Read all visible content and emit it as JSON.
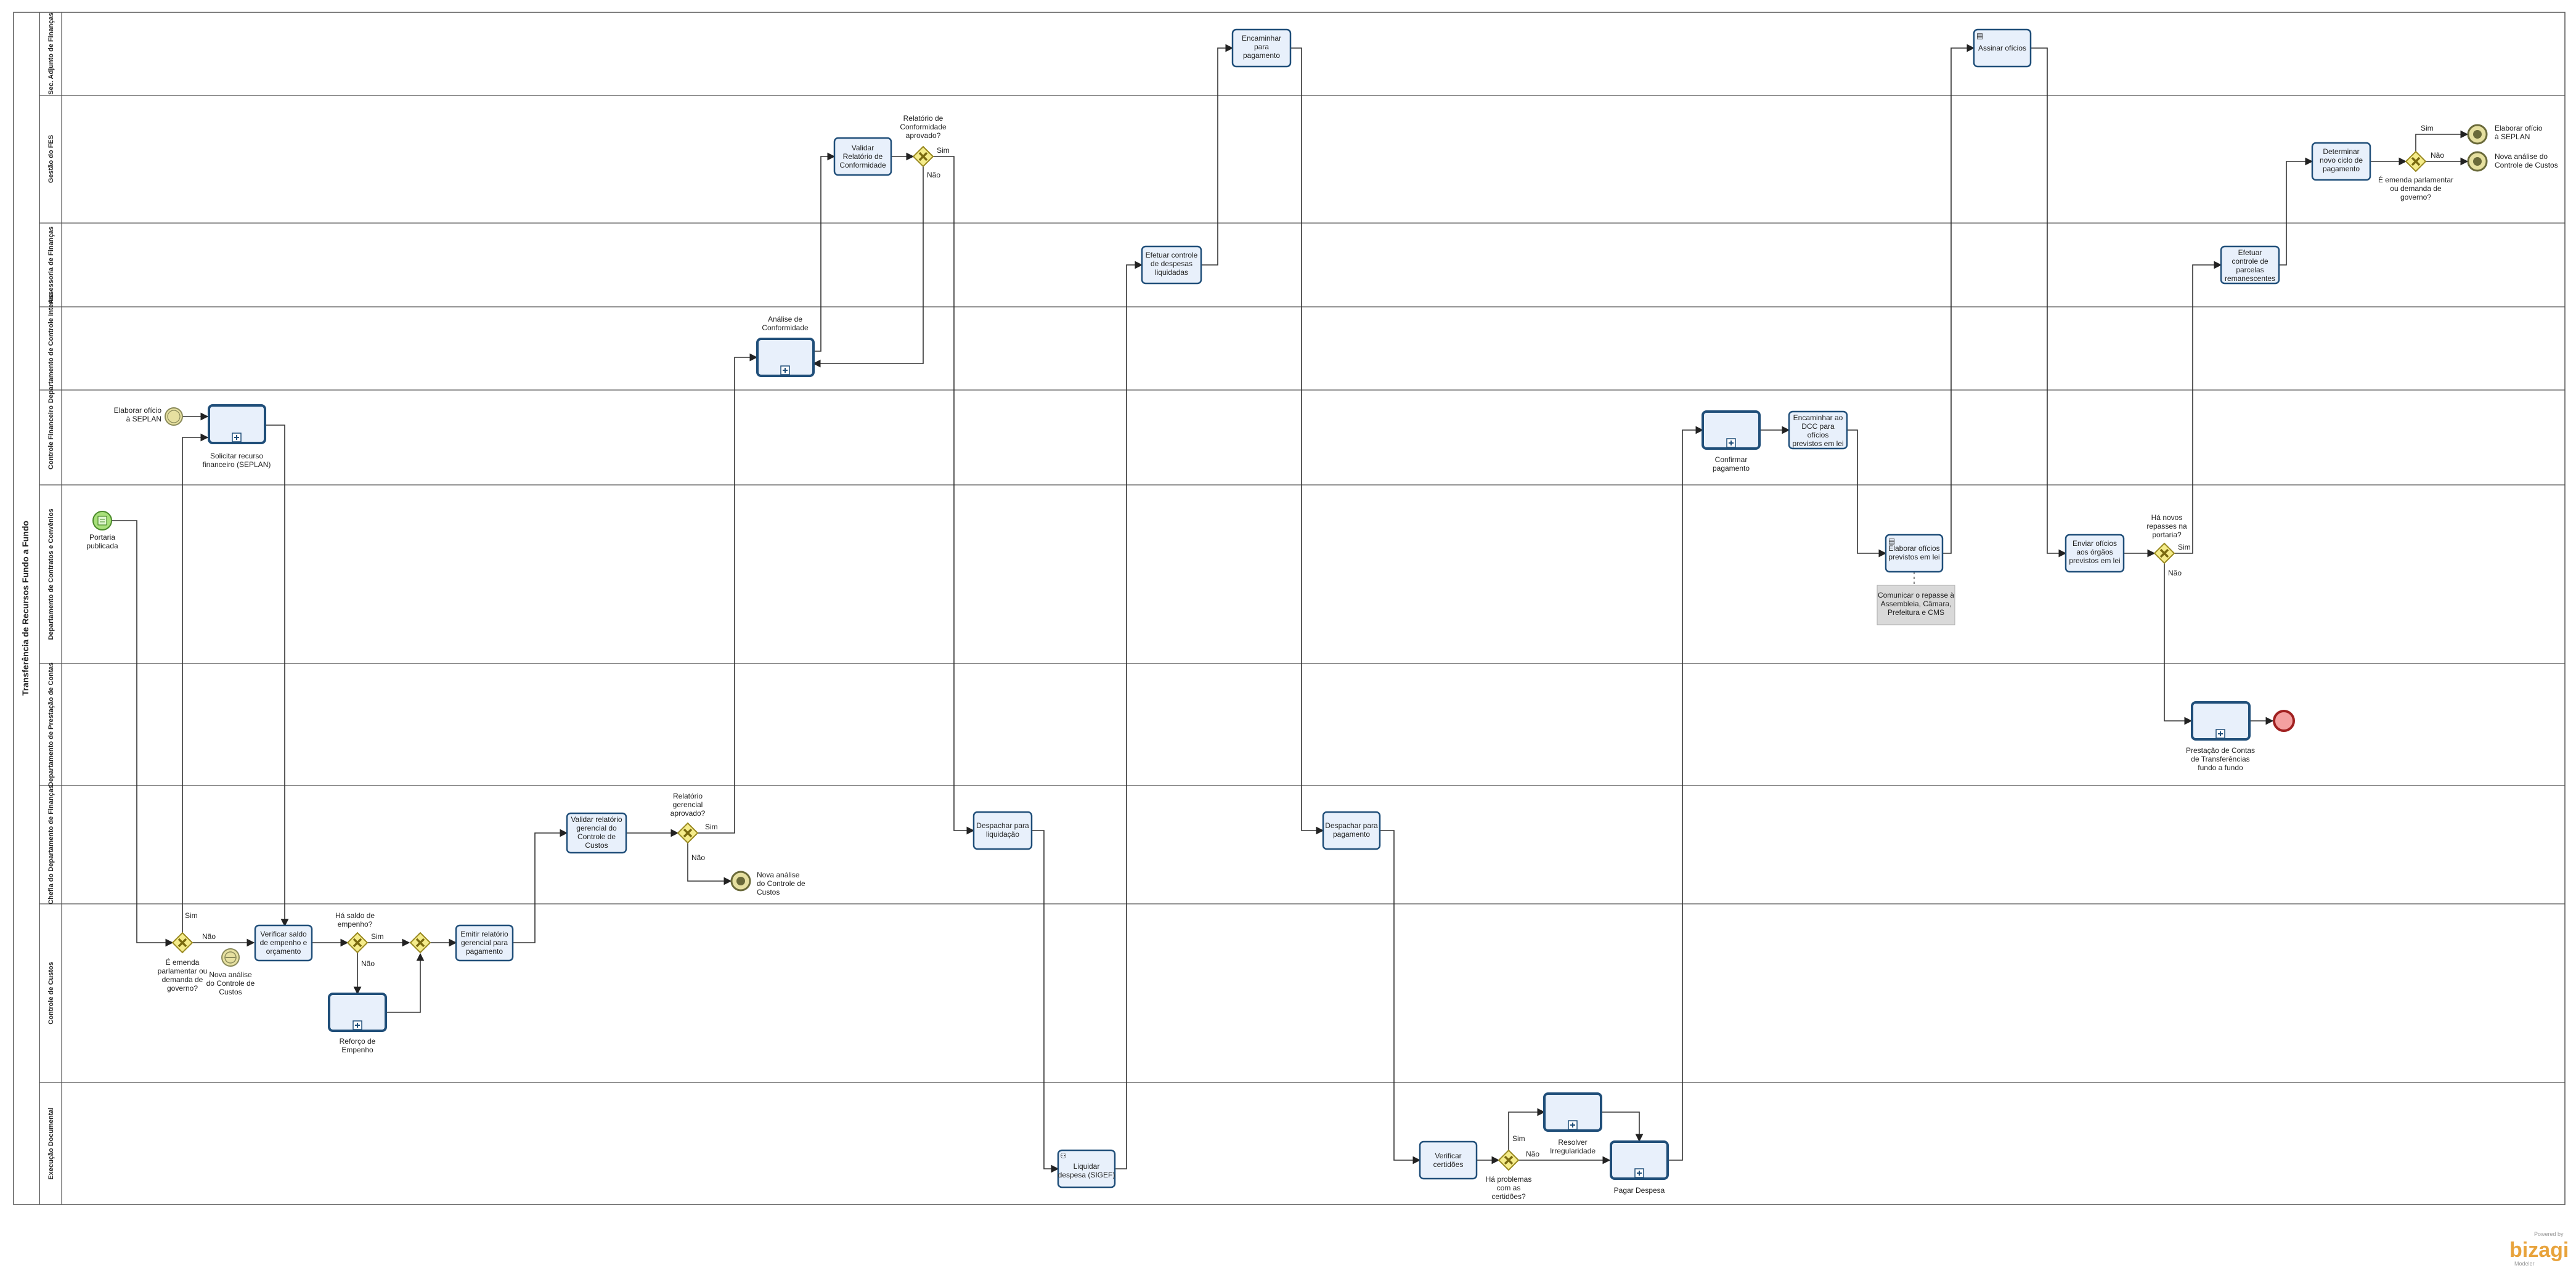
{
  "pool": {
    "name": "Transferência de Recursos Fundo a Fundo"
  },
  "lanes": [
    "Sec. Adjunto de Finanças",
    "Gestão do FES",
    "Assessoria de Finanças",
    "Departamento de Controle Interno",
    "Controle Financeiro",
    "Departamento de Contratos e Convênios",
    "Departamento de Prestação de Contas",
    "Chefia do Departamento de Finanças",
    "Controle de Custos",
    "Execução Documental"
  ],
  "events": {
    "start": "Portaria publicada",
    "msg_start_seplan": "Elaborar ofício à SEPLAN",
    "msg_nova_analise_cc1": "Nova análise do Controle de Custos",
    "msg_nova_analise_cc2": "Nova análise do Controle de Custos",
    "msg_end_seplan": "Elaborar ofício à SEPLAN",
    "msg_end_nova": "Nova análise do Controle de Custos"
  },
  "tasks": {
    "solicitar_recurso": "Solicitar recurso financeiro (SEPLAN)",
    "analise_conformidade": "Análise de Conformidade",
    "validar_relatorio": "Validar Relatório de Conformidade",
    "encaminhar_pagamento": "Encaminhar para pagamento",
    "efetuar_controle_despesas": "Efetuar controle de despesas liquidadas",
    "verificar_saldo": "Verificar saldo de empenho e orçamento",
    "reforco_empenho": "Reforço de Empenho",
    "emitir_relatorio": "Emitir relatório gerencial para pagamento",
    "validar_relatorio_gerencial": "Validar relatório gerencial do Controle de Custos",
    "despachar_liquidacao": "Despachar para liquidação",
    "liquidar_despesa": "Liquidar despesa (SIGEF)",
    "despachar_pagamento": "Despachar para pagamento",
    "verificar_certidoes": "Verificar certidões",
    "resolver_irregularidade": "Resolver Irregularidade",
    "pagar_despesa": "Pagar Despesa",
    "confirmar_pagamento": "Confirmar pagamento",
    "encaminhar_dcc": "Encaminhar ao DCC para ofícios previstos em lei",
    "elaborar_oficios": "Elaborar ofícios previstos em lei",
    "assinar_oficios": "Assinar ofícios",
    "enviar_oficios": "Enviar ofícios aos órgãos previstos em lei",
    "efetuar_controle_parcelas": "Efetuar controle de parcelas remanescentes",
    "determinar_ciclo": "Determinar novo ciclo de pagamento",
    "prestacao_contas": "Prestação de Contas de Transferências fundo a fundo"
  },
  "gateways": {
    "emenda1": "É emenda parlamentar ou demanda de governo?",
    "saldo": "Há saldo de empenho?",
    "relatorio_aprovado": "Relatório gerencial aprovado?",
    "conformidade": "Relatório de Conformidade aprovado?",
    "problemas": "Há problemas com as certidões?",
    "novos_repasses": "Há novos repasses na portaria?",
    "emenda2": "É emenda parlamentar ou demanda de governo?"
  },
  "flow_labels": {
    "yes": "Sim",
    "no": "Não"
  },
  "annotation": "Comunicar o repasse à Assembleia, Câmara, Prefeitura e CMS",
  "branding": {
    "name": "bizagi",
    "powered": "Powered by",
    "sub": "Modeler"
  },
  "colors": {
    "task_fill": "#e8f0fb",
    "task_stroke": "#1f4e79",
    "gateway_fill": "#f5ec8a",
    "start_fill": "#a8e07a",
    "end_fill": "#f4a0a0",
    "message_fill": "#e6e0a0"
  }
}
